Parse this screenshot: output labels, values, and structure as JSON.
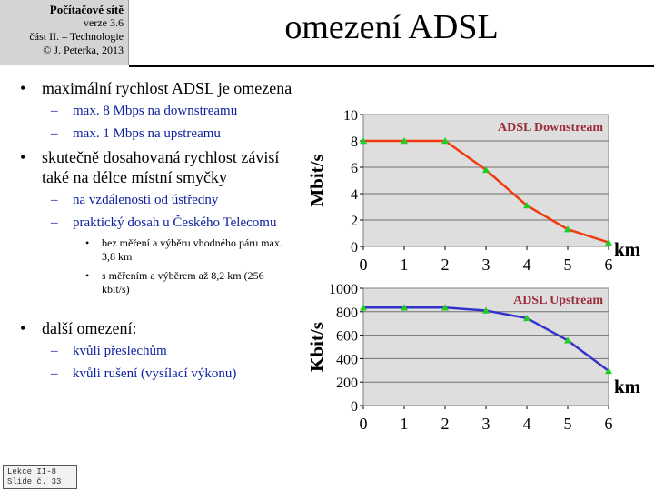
{
  "header": {
    "course": "Počítačové sítě",
    "version": "verze 3.6",
    "part": "část II. – Technologie",
    "copyright": "© J. Peterka, 2013"
  },
  "title": "omezení ADSL",
  "bullets": [
    {
      "text": "maximální rychlost ADSL je omezena",
      "children": [
        {
          "text": "max. 8 Mbps na downstreamu"
        },
        {
          "text": "max. 1 Mbps na upstreamu"
        }
      ]
    },
    {
      "text": "skutečně dosahovaná rychlost závisí také na délce místní smyčky",
      "children": [
        {
          "text": "na vzdálenosti od ústředny"
        },
        {
          "text": "praktický dosah u Českého Telecomu",
          "children": [
            {
              "text": "bez měření a výběru vhodného páru max. 3,8 km"
            },
            {
              "text": "s měřením a výběrem až 8,2 km (256 kbit/s)"
            }
          ]
        }
      ]
    },
    {
      "text": "další omezení:",
      "children": [
        {
          "text": "kvůli přeslechům"
        },
        {
          "text": "kvůli rušení (vysílací výkonu)"
        }
      ]
    }
  ],
  "footer": {
    "line1": "Lekce II-8",
    "line2": "Slide č. 33"
  },
  "chart_data": [
    {
      "type": "line",
      "title": "ADSL Downstream",
      "xlabel": "km",
      "ylabel": "Mbit/s",
      "x": [
        0,
        1,
        2,
        3,
        4,
        5,
        6
      ],
      "xticks": [
        "0",
        "1",
        "2",
        "3",
        "4",
        "5",
        "6"
      ],
      "ylim": [
        0,
        10
      ],
      "yticks": [
        "0",
        "2",
        "4",
        "6",
        "8",
        "10"
      ],
      "grid": true,
      "line_color": "#f03a10",
      "marker_color": "#22cc22",
      "series": [
        {
          "values": [
            8,
            8,
            8,
            5.8,
            3.1,
            1.3,
            0.3
          ]
        }
      ]
    },
    {
      "type": "line",
      "title": "ADSL Upstream",
      "xlabel": "km",
      "ylabel": "Kbit/s",
      "x": [
        0,
        1,
        2,
        3,
        4,
        5,
        6
      ],
      "xticks": [
        "0",
        "1",
        "2",
        "3",
        "4",
        "5",
        "6"
      ],
      "ylim": [
        0,
        1000
      ],
      "yticks": [
        "0",
        "200",
        "400",
        "600",
        "800",
        "1000"
      ],
      "grid": true,
      "line_color": "#3333cc",
      "marker_color": "#22cc22",
      "series": [
        {
          "values": [
            835,
            835,
            835,
            810,
            745,
            555,
            295
          ]
        }
      ]
    }
  ]
}
